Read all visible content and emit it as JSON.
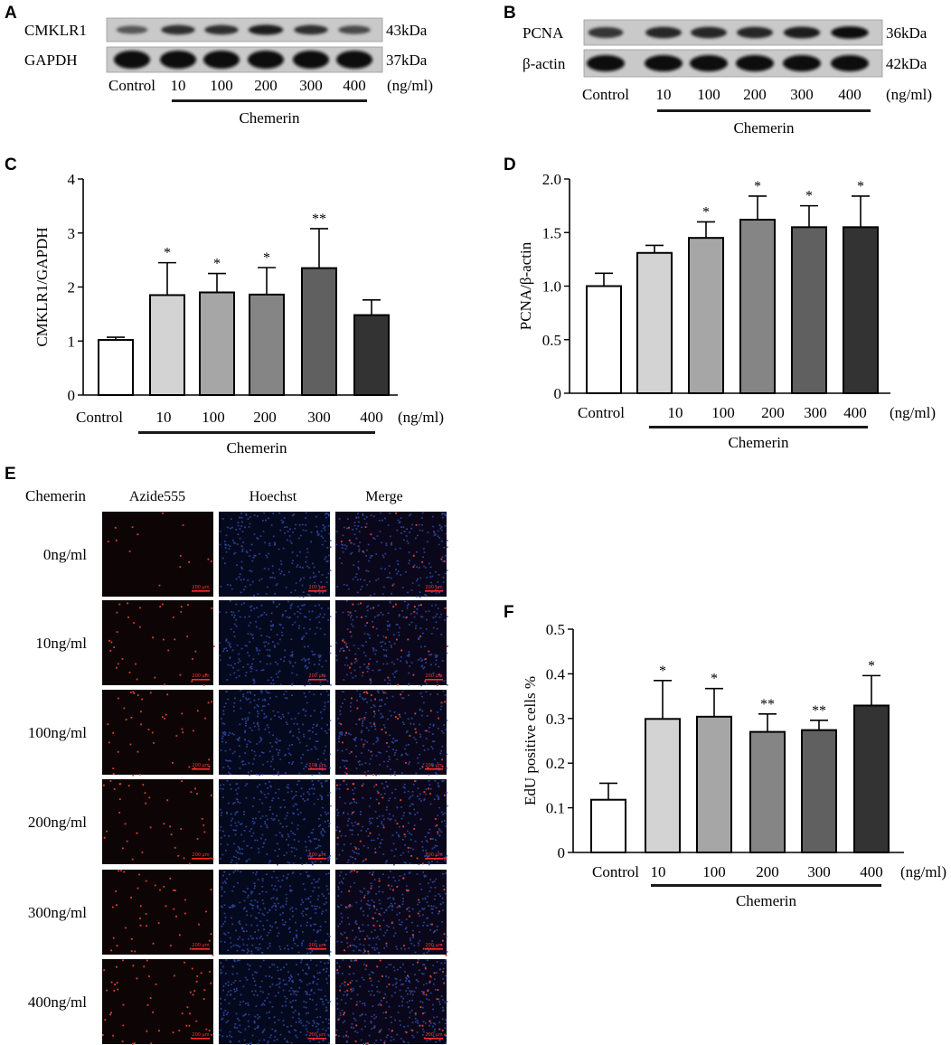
{
  "panel_letters": [
    "A",
    "B",
    "C",
    "D",
    "E",
    "F"
  ],
  "colors": {
    "bar_fills": [
      "#ffffff",
      "#d3d3d3",
      "#a6a6a6",
      "#858585",
      "#606060",
      "#333333"
    ],
    "red_cells": "#e0402a",
    "blue_nuclei": "#2f4fb0"
  },
  "blot_A": {
    "rows": [
      {
        "protein": "CMKLR1",
        "size": "43kDa",
        "intensity": [
          0.45,
          0.75,
          0.75,
          0.85,
          0.75,
          0.55
        ]
      },
      {
        "protein": "GAPDH",
        "size": "37kDa",
        "intensity": [
          1,
          1,
          1,
          1,
          1,
          1
        ]
      }
    ],
    "lanes": [
      "Control",
      "10",
      "100",
      "200",
      "300",
      "400"
    ],
    "unit": "(ng/ml)",
    "treatment": "Chemerin"
  },
  "blot_B": {
    "rows": [
      {
        "protein": "PCNA",
        "size": "36kDa",
        "intensity": [
          0.7,
          0.8,
          0.8,
          0.8,
          0.85,
          0.95
        ]
      },
      {
        "protein": "β-actin",
        "size": "42kDa",
        "intensity": [
          1,
          1,
          1,
          1,
          1,
          1
        ]
      }
    ],
    "lanes": [
      "Control",
      "10",
      "100",
      "200",
      "300",
      "400"
    ],
    "unit": "(ng/ml)",
    "treatment": "Chemerin"
  },
  "chart_data": [
    {
      "panel": "C",
      "type": "bar",
      "categories": [
        "Control",
        "10",
        "100",
        "200",
        "300",
        "400"
      ],
      "values": [
        1.02,
        1.85,
        1.9,
        1.86,
        2.35,
        1.48
      ],
      "errors": [
        0.05,
        0.6,
        0.35,
        0.5,
        0.73,
        0.28
      ],
      "significance": [
        "",
        "*",
        "*",
        "*",
        "**",
        ""
      ],
      "ylabel": "CMKLR1/GAPDH",
      "ylim": [
        0,
        4
      ],
      "yticks": [
        "0",
        "1",
        "2",
        "3",
        "4"
      ],
      "unit": "(ng/ml)",
      "treatment": "Chemerin"
    },
    {
      "panel": "D",
      "type": "bar",
      "categories": [
        "Control",
        "10",
        "100",
        "200",
        "300",
        "400"
      ],
      "values": [
        1.0,
        1.31,
        1.45,
        1.62,
        1.55,
        1.55
      ],
      "errors": [
        0.12,
        0.07,
        0.15,
        0.22,
        0.2,
        0.29
      ],
      "significance": [
        "",
        "",
        "*",
        "*",
        "*",
        "*"
      ],
      "ylabel": "PCNA/β-actin",
      "ylim": [
        0,
        2
      ],
      "yticks": [
        "0",
        "0.5",
        "1.0",
        "1.5",
        "2.0"
      ],
      "unit": "(ng/ml)",
      "treatment": "Chemerin"
    },
    {
      "panel": "F",
      "type": "bar",
      "categories": [
        "Control",
        "10",
        "100",
        "200",
        "300",
        "400"
      ],
      "values": [
        0.118,
        0.299,
        0.304,
        0.27,
        0.274,
        0.329
      ],
      "errors": [
        0.037,
        0.086,
        0.063,
        0.04,
        0.022,
        0.067
      ],
      "significance": [
        "",
        "*",
        "*",
        "**",
        "**",
        "*"
      ],
      "ylabel": "EdU positive cells %",
      "ylim": [
        0,
        0.5
      ],
      "yticks": [
        "0",
        "0.1",
        "0.2",
        "0.3",
        "0.4",
        "0.5"
      ],
      "unit": "(ng/ml)",
      "treatment": "Chemerin"
    }
  ],
  "micrographs": {
    "row_header": "Chemerin",
    "columns": [
      "Azide555",
      "Hoechst",
      "Merge"
    ],
    "rows": [
      {
        "label": "0ng/ml",
        "edu_positive_fraction": 0.118
      },
      {
        "label": "10ng/ml",
        "edu_positive_fraction": 0.299
      },
      {
        "label": "100ng/ml",
        "edu_positive_fraction": 0.304
      },
      {
        "label": "200ng/ml",
        "edu_positive_fraction": 0.27
      },
      {
        "label": "300ng/ml",
        "edu_positive_fraction": 0.274
      },
      {
        "label": "400ng/ml",
        "edu_positive_fraction": 0.329
      }
    ],
    "scale_bar_label": "200 μm"
  }
}
